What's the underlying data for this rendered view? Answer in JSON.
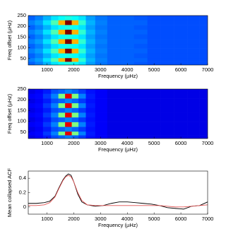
{
  "chart_data": [
    {
      "type": "heatmap",
      "colormap": "jet",
      "zlim": [
        0,
        1
      ],
      "x_label": "Frequency (µHz)",
      "y_label": "Freq offset (µHz)",
      "xlim": [
        300,
        7000
      ],
      "ylim": [
        20,
        250
      ],
      "xticks": [
        1000,
        2000,
        3000,
        4000,
        5000,
        6000,
        7000
      ],
      "yticks": [
        50,
        100,
        150,
        200,
        250
      ],
      "x": [
        400,
        700,
        1000,
        1300,
        1550,
        1800,
        2050,
        2300,
        2600,
        3000,
        3500,
        4000,
        4500,
        5000,
        5500,
        6000,
        6500,
        6900
      ],
      "y": [
        30,
        42,
        64,
        86,
        108,
        130,
        152,
        174,
        196,
        218,
        240
      ],
      "z": [
        [
          0.22,
          0.25,
          0.3,
          0.35,
          0.38,
          0.4,
          0.38,
          0.35,
          0.28,
          0.24,
          0.22,
          0.22,
          0.21,
          0.2,
          0.2,
          0.2,
          0.2,
          0.2
        ],
        [
          0.25,
          0.28,
          0.35,
          0.45,
          0.7,
          1.0,
          0.7,
          0.42,
          0.3,
          0.25,
          0.22,
          0.22,
          0.22,
          0.2,
          0.2,
          0.2,
          0.2,
          0.2
        ],
        [
          0.22,
          0.25,
          0.3,
          0.35,
          0.38,
          0.4,
          0.38,
          0.35,
          0.28,
          0.24,
          0.22,
          0.22,
          0.21,
          0.2,
          0.2,
          0.2,
          0.2,
          0.2
        ],
        [
          0.25,
          0.28,
          0.35,
          0.45,
          0.7,
          1.0,
          0.7,
          0.42,
          0.3,
          0.25,
          0.22,
          0.22,
          0.22,
          0.2,
          0.2,
          0.2,
          0.2,
          0.2
        ],
        [
          0.22,
          0.25,
          0.3,
          0.35,
          0.38,
          0.4,
          0.38,
          0.35,
          0.28,
          0.24,
          0.22,
          0.22,
          0.21,
          0.2,
          0.2,
          0.2,
          0.2,
          0.2
        ],
        [
          0.25,
          0.28,
          0.35,
          0.45,
          0.7,
          1.0,
          0.7,
          0.42,
          0.3,
          0.25,
          0.22,
          0.22,
          0.22,
          0.2,
          0.2,
          0.2,
          0.2,
          0.2
        ],
        [
          0.22,
          0.25,
          0.3,
          0.35,
          0.38,
          0.4,
          0.38,
          0.35,
          0.28,
          0.24,
          0.22,
          0.22,
          0.21,
          0.2,
          0.2,
          0.2,
          0.2,
          0.2
        ],
        [
          0.25,
          0.28,
          0.35,
          0.45,
          0.7,
          1.0,
          0.7,
          0.42,
          0.3,
          0.25,
          0.22,
          0.22,
          0.22,
          0.2,
          0.2,
          0.2,
          0.2,
          0.2
        ],
        [
          0.22,
          0.25,
          0.3,
          0.35,
          0.38,
          0.4,
          0.38,
          0.35,
          0.28,
          0.24,
          0.22,
          0.22,
          0.21,
          0.2,
          0.2,
          0.2,
          0.2,
          0.2
        ],
        [
          0.25,
          0.28,
          0.35,
          0.45,
          0.7,
          1.0,
          0.7,
          0.42,
          0.3,
          0.25,
          0.22,
          0.22,
          0.22,
          0.2,
          0.2,
          0.2,
          0.2,
          0.2
        ],
        [
          0.22,
          0.25,
          0.3,
          0.35,
          0.38,
          0.4,
          0.38,
          0.35,
          0.28,
          0.24,
          0.22,
          0.22,
          0.21,
          0.2,
          0.2,
          0.2,
          0.2,
          0.2
        ]
      ]
    },
    {
      "type": "heatmap",
      "colormap": "jet",
      "zlim": [
        0,
        1
      ],
      "x_label": "Frequency (µHz)",
      "y_label": "Freq offset (µHz)",
      "xlim": [
        300,
        7000
      ],
      "ylim": [
        20,
        250
      ],
      "xticks": [
        1000,
        2000,
        3000,
        4000,
        5000,
        6000,
        7000
      ],
      "yticks": [
        50,
        100,
        150,
        200,
        250
      ],
      "x": [
        400,
        700,
        1000,
        1300,
        1550,
        1800,
        2050,
        2300,
        2600,
        3000,
        3500,
        4000,
        4500,
        5000,
        5500,
        6000,
        6500,
        6900
      ],
      "y": [
        30,
        42,
        64,
        86,
        108,
        130,
        152,
        174,
        196,
        218,
        240
      ],
      "z": [
        [
          0.1,
          0.12,
          0.15,
          0.2,
          0.22,
          0.25,
          0.22,
          0.18,
          0.14,
          0.12,
          0.1,
          0.1,
          0.1,
          0.1,
          0.1,
          0.1,
          0.1,
          0.1
        ],
        [
          0.12,
          0.13,
          0.18,
          0.25,
          0.5,
          0.9,
          0.5,
          0.25,
          0.15,
          0.12,
          0.1,
          0.1,
          0.1,
          0.1,
          0.1,
          0.1,
          0.1,
          0.1
        ],
        [
          0.1,
          0.12,
          0.15,
          0.2,
          0.22,
          0.25,
          0.22,
          0.18,
          0.14,
          0.12,
          0.1,
          0.1,
          0.1,
          0.1,
          0.1,
          0.1,
          0.1,
          0.1
        ],
        [
          0.12,
          0.13,
          0.18,
          0.25,
          0.5,
          0.9,
          0.5,
          0.25,
          0.15,
          0.12,
          0.1,
          0.1,
          0.1,
          0.1,
          0.1,
          0.1,
          0.1,
          0.1
        ],
        [
          0.1,
          0.12,
          0.15,
          0.2,
          0.22,
          0.25,
          0.22,
          0.18,
          0.14,
          0.12,
          0.1,
          0.1,
          0.1,
          0.1,
          0.1,
          0.1,
          0.1,
          0.1
        ],
        [
          0.12,
          0.13,
          0.18,
          0.25,
          0.5,
          0.9,
          0.5,
          0.25,
          0.15,
          0.12,
          0.1,
          0.1,
          0.1,
          0.1,
          0.1,
          0.1,
          0.1,
          0.1
        ],
        [
          0.1,
          0.12,
          0.15,
          0.2,
          0.22,
          0.25,
          0.22,
          0.18,
          0.14,
          0.12,
          0.1,
          0.1,
          0.1,
          0.1,
          0.1,
          0.1,
          0.1,
          0.1
        ],
        [
          0.12,
          0.13,
          0.18,
          0.25,
          0.5,
          0.9,
          0.5,
          0.25,
          0.15,
          0.12,
          0.1,
          0.1,
          0.1,
          0.1,
          0.1,
          0.1,
          0.1,
          0.1
        ],
        [
          0.1,
          0.12,
          0.15,
          0.2,
          0.22,
          0.25,
          0.22,
          0.18,
          0.14,
          0.12,
          0.1,
          0.1,
          0.1,
          0.1,
          0.1,
          0.1,
          0.1,
          0.1
        ],
        [
          0.12,
          0.13,
          0.18,
          0.25,
          0.5,
          0.9,
          0.5,
          0.25,
          0.15,
          0.12,
          0.1,
          0.1,
          0.1,
          0.1,
          0.1,
          0.1,
          0.1,
          0.1
        ],
        [
          0.1,
          0.12,
          0.15,
          0.2,
          0.22,
          0.25,
          0.22,
          0.18,
          0.14,
          0.12,
          0.1,
          0.1,
          0.1,
          0.1,
          0.1,
          0.1,
          0.1,
          0.1
        ]
      ]
    },
    {
      "type": "line",
      "x_label": "Frequency (µHz)",
      "y_label": "Mean collapsed ACF",
      "xlim": [
        300,
        7000
      ],
      "ylim": [
        -0.1,
        0.5
      ],
      "xticks": [
        1000,
        2000,
        3000,
        4000,
        5000,
        6000,
        7000
      ],
      "yticks": [
        0,
        0.2,
        0.4
      ],
      "x": [
        300,
        600,
        900,
        1100,
        1300,
        1450,
        1600,
        1700,
        1800,
        1900,
        2000,
        2150,
        2300,
        2500,
        2800,
        3100,
        3400,
        3700,
        4000,
        4300,
        4600,
        4900,
        5200,
        5500,
        5800,
        6100,
        6400,
        6700,
        7000
      ],
      "series": [
        {
          "color": "#000000",
          "values": [
            0.05,
            0.05,
            0.06,
            0.08,
            0.15,
            0.27,
            0.38,
            0.43,
            0.46,
            0.44,
            0.35,
            0.18,
            0.07,
            0.03,
            0.01,
            0.02,
            0.05,
            0.07,
            0.07,
            0.06,
            0.05,
            0.04,
            0.02,
            -0.01,
            -0.02,
            -0.03,
            0.01,
            0.02,
            0.07
          ]
        },
        {
          "color": "#e05050",
          "values": [
            0.02,
            0.02,
            0.03,
            0.06,
            0.14,
            0.26,
            0.37,
            0.42,
            0.44,
            0.42,
            0.35,
            0.2,
            0.09,
            0.03,
            0.02,
            0.02,
            0.02,
            0.02,
            0.02,
            0.02,
            0.02,
            0.02,
            0.02,
            0.01,
            0.0,
            0.0,
            0.01,
            0.02,
            0.03
          ]
        }
      ]
    }
  ]
}
